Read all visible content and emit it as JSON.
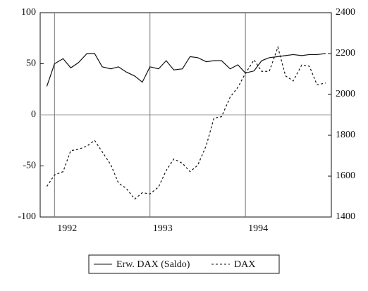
{
  "chart_data": {
    "type": "line",
    "x": [
      1991.92,
      1992.0,
      1992.09,
      1992.17,
      1992.25,
      1992.34,
      1992.42,
      1992.5,
      1992.59,
      1992.67,
      1992.75,
      1992.84,
      1992.92,
      1993.0,
      1993.09,
      1993.17,
      1993.25,
      1993.34,
      1993.42,
      1993.5,
      1993.59,
      1993.67,
      1993.75,
      1993.84,
      1993.92,
      1994.0,
      1994.09,
      1994.17,
      1994.25,
      1994.34,
      1994.42,
      1994.5,
      1994.59,
      1994.67,
      1994.75,
      1994.84
    ],
    "xlim": [
      1991.85,
      1994.9
    ],
    "xticks": [
      1992,
      1993,
      1994
    ],
    "ylim": [
      -100,
      100
    ],
    "yticks": [
      -100,
      -50,
      0,
      50,
      100
    ],
    "y2lim": [
      1400,
      2400
    ],
    "y2ticks": [
      1400,
      1600,
      1800,
      2000,
      2200,
      2400
    ],
    "grid": true,
    "series": [
      {
        "name": "Erw. DAX (Saldo)",
        "color": "#111111",
        "dash": "none",
        "values": [
          28,
          50,
          55,
          46,
          51,
          60,
          60,
          47,
          45,
          47,
          42,
          38,
          32,
          47,
          45,
          53,
          44,
          45,
          57,
          56,
          52,
          53,
          53,
          45,
          49,
          41,
          43,
          53,
          56,
          57,
          58,
          59,
          58,
          59,
          59,
          60
        ]
      },
      {
        "name": "DAX",
        "color": "#111111",
        "dash": "3,3",
        "axis": "y2",
        "values": [
          1550,
          1606,
          1622,
          1725,
          1731,
          1747,
          1775,
          1719,
          1656,
          1566,
          1541,
          1488,
          1519,
          1513,
          1547,
          1628,
          1684,
          1663,
          1622,
          1653,
          1750,
          1884,
          1891,
          1987,
          2034,
          2103,
          2169,
          2113,
          2113,
          2231,
          2091,
          2066,
          2144,
          2138,
          2047,
          2056
        ]
      }
    ]
  }
}
